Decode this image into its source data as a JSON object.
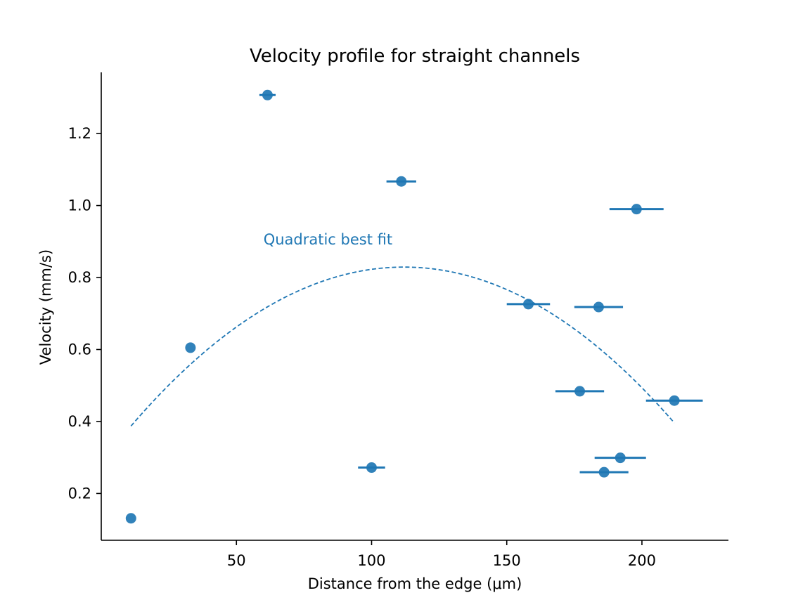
{
  "chart_data": {
    "type": "scatter",
    "title": "Velocity profile for straight channels",
    "xlabel": "Distance from the edge (μm)",
    "ylabel": "Velocity (mm/s)",
    "xlim": [
      0,
      232
    ],
    "ylim": [
      0.07,
      1.37
    ],
    "xticks": [
      50,
      100,
      150,
      200
    ],
    "yticks": [
      0.2,
      0.4,
      0.6,
      0.8,
      1.0,
      1.2
    ],
    "xtick_labels": [
      "50",
      "100",
      "150",
      "200"
    ],
    "ytick_labels": [
      "0.2",
      "0.4",
      "0.6",
      "0.8",
      "1.0",
      "1.2"
    ],
    "grid": false,
    "series": [
      {
        "kind": "scatter-with-x-errorbars",
        "color": "#1f77b4",
        "points": [
          {
            "x": 11,
            "y": 0.131,
            "xerr": 0
          },
          {
            "x": 33,
            "y": 0.605,
            "xerr": 0
          },
          {
            "x": 61.5,
            "y": 1.307,
            "xerr": 3
          },
          {
            "x": 100,
            "y": 0.272,
            "xerr": 5
          },
          {
            "x": 111,
            "y": 1.067,
            "xerr": 5.5
          },
          {
            "x": 158,
            "y": 0.726,
            "xerr": 8
          },
          {
            "x": 177,
            "y": 0.484,
            "xerr": 9
          },
          {
            "x": 184,
            "y": 0.718,
            "xerr": 9
          },
          {
            "x": 186,
            "y": 0.259,
            "xerr": 9
          },
          {
            "x": 192,
            "y": 0.299,
            "xerr": 9.5
          },
          {
            "x": 198,
            "y": 0.99,
            "xerr": 10
          },
          {
            "x": 212,
            "y": 0.458,
            "xerr": 10.5
          }
        ]
      },
      {
        "kind": "fit-curve",
        "style": "dashed",
        "color": "#1f77b4",
        "fit": "quadratic",
        "x_range": [
          11,
          212
        ],
        "coefficients": {
          "vertex_x": 112,
          "vertex_y": 0.829,
          "a": -4.33e-05
        }
      }
    ],
    "annotations": [
      {
        "text": "Quadratic best fit",
        "x": 60,
        "y": 0.905,
        "color": "#1f77b4"
      }
    ]
  }
}
